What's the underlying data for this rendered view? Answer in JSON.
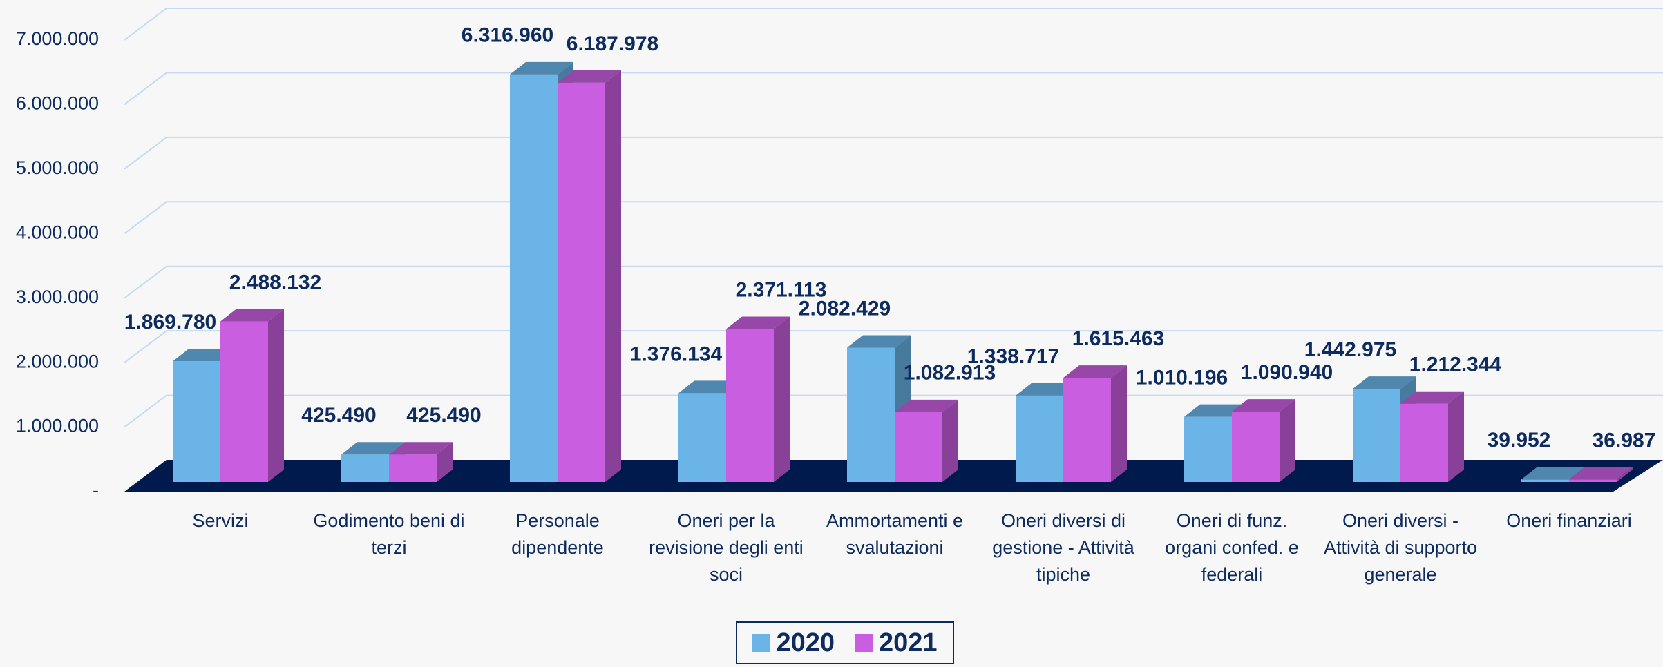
{
  "chart_data": {
    "type": "bar3d",
    "categories": [
      "Servizi",
      "Godimento beni di terzi",
      "Personale dipendente",
      "Oneri per la revisione degli enti soci",
      "Ammortamenti e svalutazioni",
      "Oneri diversi di gestione - Attività tipiche",
      "Oneri di funz. organi confed. e federali",
      "Oneri diversi - Attività di supporto generale",
      "Oneri finanziari"
    ],
    "series": [
      {
        "name": "2020",
        "color": "#6ab4e8",
        "values": [
          1869780,
          425490,
          6316960,
          1376134,
          2082429,
          1338717,
          1010196,
          1442975,
          39952
        ],
        "value_labels": [
          "1.869.780",
          "425.490",
          "6.316.960",
          "1.376.134",
          "2.082.429",
          "1.338.717",
          "1.010.196",
          "1.442.975",
          "39.952"
        ]
      },
      {
        "name": "2021",
        "color": "#c95ee0",
        "values": [
          2488132,
          425490,
          6187978,
          2371113,
          1082913,
          1615463,
          1090940,
          1212344,
          36987
        ],
        "value_labels": [
          "2.488.132",
          "425.490",
          "6.187.978",
          "2.371.113",
          "1.082.913",
          "1.615.463",
          "1.090.940",
          "1.212.344",
          "36.987"
        ]
      }
    ],
    "ylim": [
      0,
      7000000
    ],
    "yticks": [
      {
        "value": 0,
        "label": "-"
      },
      {
        "value": 1000000,
        "label": "1.000.000"
      },
      {
        "value": 2000000,
        "label": "2.000.000"
      },
      {
        "value": 3000000,
        "label": "3.000.000"
      },
      {
        "value": 4000000,
        "label": "4.000.000"
      },
      {
        "value": 5000000,
        "label": "5.000.000"
      },
      {
        "value": 6000000,
        "label": "6.000.000"
      },
      {
        "value": 7000000,
        "label": "7.000.000"
      }
    ],
    "grid": true,
    "legend": "bottom"
  }
}
